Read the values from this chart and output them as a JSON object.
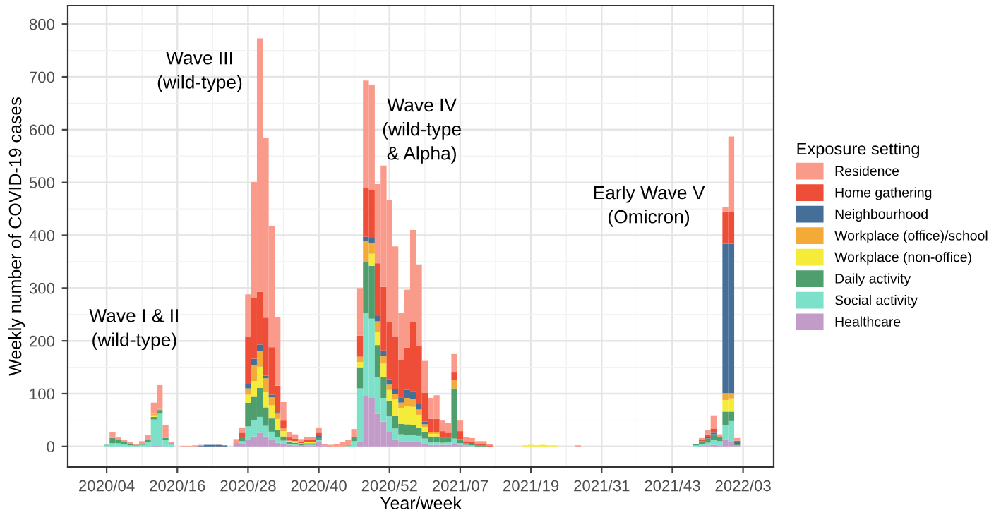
{
  "chart_data": {
    "type": "bar",
    "stacked": true,
    "xlabel": "Year/week",
    "ylabel": "Weekly number of COVID-19 cases",
    "legend_title": "Exposure setting",
    "categories": [
      null,
      null,
      null,
      "2020/04",
      null,
      null,
      null,
      null,
      null,
      null,
      null,
      null,
      null,
      null,
      null,
      "2020/16",
      null,
      null,
      null,
      null,
      null,
      null,
      null,
      null,
      null,
      null,
      null,
      "2020/28",
      null,
      null,
      null,
      null,
      null,
      null,
      null,
      null,
      null,
      null,
      null,
      "2020/40",
      null,
      null,
      null,
      null,
      null,
      null,
      null,
      null,
      null,
      null,
      null,
      "2020/52",
      null,
      null,
      null,
      null,
      null,
      null,
      null,
      null,
      null,
      null,
      null,
      "2021/07",
      null,
      null,
      null,
      null,
      null,
      null,
      null,
      null,
      null,
      null,
      null,
      "2021/19",
      null,
      null,
      null,
      null,
      null,
      null,
      null,
      null,
      null,
      null,
      null,
      "2021/31",
      null,
      null,
      null,
      null,
      null,
      null,
      null,
      null,
      null,
      null,
      null,
      "2021/43",
      null,
      null,
      null,
      null,
      null,
      null,
      null,
      null,
      null,
      null,
      null,
      "2022/03",
      null,
      null,
      null
    ],
    "series": [
      {
        "name": "Healthcare",
        "color": "#c39bc9",
        "values": [
          0,
          0,
          0,
          0,
          0,
          0,
          0,
          0,
          0,
          0,
          0,
          1,
          2,
          0,
          0,
          0,
          0,
          0,
          0,
          0,
          0,
          0,
          0,
          0,
          0,
          4,
          4,
          13,
          19,
          26,
          19,
          13,
          7,
          5,
          3,
          2,
          2,
          2,
          2,
          10,
          2,
          0,
          0,
          0,
          0,
          0,
          10,
          97,
          92,
          62,
          47,
          27,
          14,
          10,
          10,
          10,
          8,
          5,
          3,
          3,
          3,
          3,
          5,
          3,
          1,
          0,
          0,
          0,
          0,
          0,
          0,
          0,
          0,
          0,
          0,
          0,
          0,
          0,
          0,
          0,
          0,
          0,
          0,
          0,
          0,
          0,
          0,
          0,
          0,
          0,
          0,
          0,
          0,
          0,
          0,
          0,
          0,
          0,
          0,
          0,
          0,
          0,
          0,
          0,
          1,
          2,
          3,
          2,
          14,
          8,
          2,
          0,
          0,
          0,
          0
        ]
      },
      {
        "name": "Social activity",
        "color": "#7de0c8",
        "values": [
          0,
          0,
          0,
          2,
          6,
          6,
          4,
          2,
          1,
          3,
          9,
          50,
          60,
          12,
          5,
          0,
          0,
          0,
          0,
          0,
          0,
          0,
          0,
          0,
          0,
          0,
          6,
          25,
          30,
          30,
          20,
          15,
          10,
          6,
          2,
          2,
          0,
          1,
          1,
          2,
          0,
          0,
          0,
          0,
          1,
          10,
          100,
          156,
          150,
          70,
          45,
          30,
          20,
          13,
          12,
          12,
          12,
          10,
          6,
          6,
          4,
          5,
          10,
          3,
          2,
          2,
          0,
          0,
          0,
          0,
          0,
          0,
          0,
          0,
          0,
          0,
          0,
          0,
          0,
          0,
          0,
          0,
          0,
          0,
          0,
          0,
          0,
          0,
          0,
          0,
          0,
          0,
          0,
          0,
          0,
          0,
          0,
          0,
          0,
          0,
          0,
          0,
          0,
          2,
          3,
          5,
          10,
          8,
          26,
          40,
          0,
          0,
          0,
          0,
          0
        ]
      },
      {
        "name": "Daily activity",
        "color": "#4e9e6e",
        "values": [
          0,
          0,
          0,
          1,
          10,
          6,
          4,
          2,
          1,
          2,
          4,
          5,
          7,
          4,
          1,
          0,
          0,
          0,
          0,
          0,
          0,
          0,
          0,
          0,
          0,
          2,
          8,
          45,
          45,
          55,
          35,
          25,
          15,
          8,
          3,
          3,
          2,
          3,
          3,
          4,
          0,
          0,
          0,
          0,
          1,
          8,
          40,
          96,
          100,
          60,
          40,
          30,
          25,
          20,
          20,
          18,
          15,
          12,
          10,
          10,
          10,
          8,
          95,
          8,
          3,
          3,
          2,
          2,
          0,
          0,
          0,
          0,
          0,
          0,
          0,
          0,
          0,
          0,
          0,
          0,
          0,
          0,
          0,
          0,
          0,
          0,
          0,
          0,
          0,
          0,
          0,
          0,
          0,
          0,
          0,
          0,
          0,
          0,
          0,
          0,
          0,
          0,
          0,
          3,
          6,
          8,
          10,
          8,
          26,
          18,
          3,
          0,
          0,
          0,
          0
        ]
      },
      {
        "name": "Workplace (non-office)",
        "color": "#f5ec3a",
        "values": [
          0,
          0,
          0,
          0,
          0,
          0,
          0,
          0,
          0,
          0,
          0,
          3,
          0,
          0,
          0,
          0,
          0,
          0,
          0,
          0,
          0,
          0,
          0,
          0,
          0,
          0,
          0,
          15,
          30,
          40,
          30,
          25,
          20,
          10,
          3,
          3,
          2,
          2,
          2,
          0,
          0,
          0,
          0,
          0,
          0,
          0,
          10,
          0,
          23,
          25,
          25,
          20,
          30,
          30,
          35,
          35,
          25,
          10,
          5,
          5,
          0,
          0,
          0,
          0,
          0,
          0,
          0,
          0,
          0,
          0,
          0,
          0,
          0,
          0,
          2,
          3,
          2,
          3,
          2,
          2,
          0,
          0,
          0,
          0,
          0,
          0,
          0,
          0,
          0,
          0,
          0,
          0,
          0,
          0,
          0,
          0,
          0,
          0,
          0,
          0,
          0,
          0,
          0,
          0,
          0,
          0,
          0,
          0,
          22,
          25,
          0,
          0,
          0,
          0,
          0
        ]
      },
      {
        "name": "Workplace (office)/school",
        "color": "#f3aa36",
        "values": [
          0,
          0,
          0,
          0,
          1,
          0,
          0,
          0,
          0,
          0,
          0,
          3,
          2,
          0,
          0,
          0,
          0,
          0,
          0,
          0,
          0,
          0,
          0,
          0,
          0,
          0,
          0,
          12,
          30,
          30,
          25,
          15,
          10,
          5,
          0,
          0,
          0,
          0,
          0,
          0,
          0,
          0,
          0,
          0,
          0,
          0,
          10,
          40,
          20,
          20,
          15,
          10,
          10,
          10,
          15,
          15,
          10,
          5,
          3,
          3,
          0,
          0,
          15,
          0,
          0,
          0,
          0,
          0,
          0,
          0,
          0,
          0,
          0,
          0,
          0,
          0,
          0,
          0,
          0,
          0,
          0,
          0,
          0,
          0,
          0,
          0,
          0,
          0,
          0,
          0,
          0,
          0,
          0,
          0,
          0,
          0,
          0,
          0,
          0,
          0,
          0,
          0,
          0,
          0,
          0,
          0,
          0,
          0,
          13,
          10,
          0,
          0,
          0,
          0,
          0
        ]
      },
      {
        "name": "Neighbourhood",
        "color": "#456f99",
        "values": [
          0,
          0,
          0,
          0,
          0,
          0,
          0,
          0,
          0,
          0,
          0,
          0,
          0,
          0,
          0,
          0,
          0,
          0,
          0,
          1,
          3,
          3,
          3,
          2,
          0,
          0,
          0,
          8,
          12,
          12,
          5,
          5,
          3,
          0,
          0,
          0,
          0,
          0,
          0,
          5,
          0,
          0,
          0,
          0,
          0,
          0,
          0,
          8,
          10,
          10,
          10,
          10,
          10,
          10,
          15,
          15,
          10,
          5,
          0,
          0,
          0,
          0,
          0,
          0,
          0,
          0,
          0,
          0,
          0,
          0,
          0,
          0,
          0,
          0,
          0,
          0,
          0,
          0,
          0,
          0,
          0,
          0,
          0,
          0,
          0,
          0,
          0,
          0,
          0,
          0,
          0,
          0,
          0,
          0,
          0,
          0,
          0,
          0,
          0,
          0,
          0,
          0,
          0,
          0,
          0,
          3,
          3,
          0,
          283,
          283,
          3,
          0,
          0,
          0,
          0
        ]
      },
      {
        "name": "Home gathering",
        "color": "#ee4d37",
        "values": [
          0,
          0,
          0,
          0,
          0,
          0,
          0,
          0,
          0,
          0,
          0,
          0,
          0,
          0,
          0,
          0,
          0,
          0,
          0,
          0,
          0,
          0,
          0,
          0,
          0,
          0,
          8,
          90,
          115,
          100,
          110,
          90,
          50,
          15,
          6,
          5,
          3,
          4,
          4,
          5,
          0,
          0,
          0,
          0,
          0,
          0,
          40,
          92,
          92,
          100,
          120,
          110,
          100,
          70,
          80,
          130,
          110,
          55,
          25,
          25,
          12,
          10,
          15,
          15,
          4,
          3,
          2,
          2,
          2,
          0,
          0,
          0,
          0,
          0,
          0,
          0,
          0,
          0,
          0,
          0,
          0,
          0,
          0,
          0,
          0,
          0,
          0,
          0,
          0,
          0,
          0,
          0,
          0,
          0,
          0,
          0,
          0,
          0,
          0,
          0,
          0,
          0,
          0,
          0,
          3,
          5,
          8,
          0,
          61,
          60,
          3,
          0,
          0,
          0,
          0
        ]
      },
      {
        "name": "Residence",
        "color": "#fa9a8a",
        "values": [
          0,
          0,
          0,
          0,
          10,
          5,
          5,
          4,
          3,
          5,
          9,
          21,
          45,
          24,
          2,
          0,
          1,
          1,
          2,
          2,
          0,
          0,
          1,
          0,
          0,
          8,
          10,
          80,
          220,
          480,
          340,
          230,
          130,
          35,
          10,
          8,
          5,
          6,
          6,
          10,
          3,
          3,
          4,
          8,
          10,
          15,
          90,
          204,
          197,
          150,
          230,
          230,
          170,
          90,
          110,
          175,
          155,
          60,
          40,
          45,
          20,
          18,
          35,
          20,
          8,
          8,
          6,
          6,
          3,
          0,
          0,
          0,
          0,
          0,
          0,
          0,
          0,
          0,
          0,
          0,
          0,
          0,
          0,
          2,
          0,
          0,
          0,
          0,
          0,
          0,
          0,
          0,
          0,
          0,
          0,
          0,
          0,
          0,
          0,
          0,
          0,
          0,
          0,
          0,
          3,
          8,
          25,
          5,
          8,
          143,
          5,
          0,
          0,
          0,
          0
        ]
      }
    ],
    "ylim": [
      -39,
      835
    ],
    "yticks": [
      0,
      100,
      200,
      300,
      400,
      500,
      600,
      700,
      800
    ],
    "grid": true,
    "legend": "right",
    "annotations": [
      "Wave I & II\n(wild-type)",
      "Wave III\n(wild-type)",
      "Wave IV\n(wild-type\n& Alpha)",
      "Early Wave V\n(Omicron)"
    ]
  }
}
